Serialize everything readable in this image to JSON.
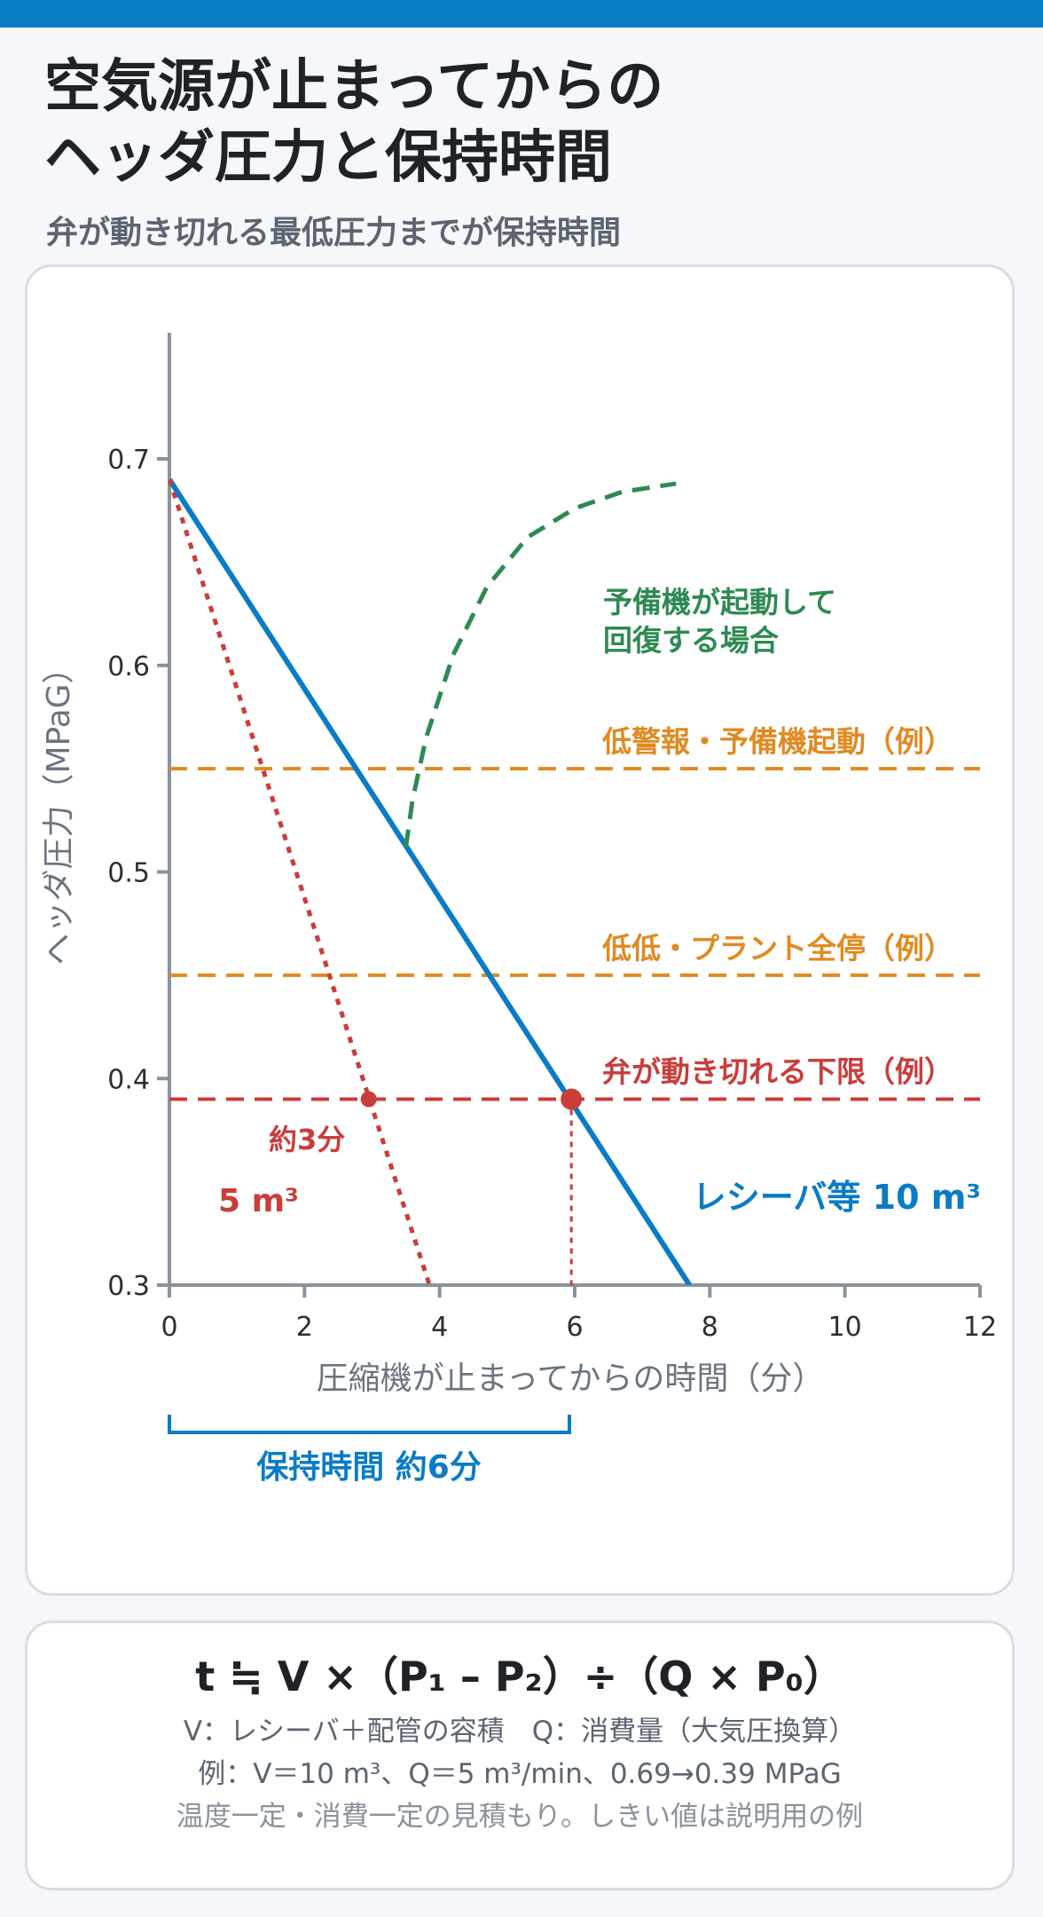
{
  "header": {
    "title_line1": "空気源が止まってからの",
    "title_line2": "ヘッダ圧力と保持時間",
    "subtitle": "弁が動き切れる最低圧力までが保持時間"
  },
  "chart_data": {
    "type": "line",
    "xlabel": "圧縮機が止まってからの時間（分）",
    "ylabel": "ヘッダ圧力（MPaG）",
    "xlim": [
      0,
      12
    ],
    "ylim": [
      0.3,
      0.7
    ],
    "x_ticks": [
      "0",
      "2",
      "4",
      "6",
      "8",
      "10",
      "12"
    ],
    "y_ticks": [
      "0.3",
      "0.4",
      "0.5",
      "0.6",
      "0.7"
    ],
    "series": [
      {
        "name": "レシーバ等 10 m³",
        "color": "#0a7cc6",
        "style": "solid",
        "points": [
          [
            0,
            0.69
          ],
          [
            7.7,
            0.3
          ]
        ]
      },
      {
        "name": "5 m³",
        "color": "#c93d3a",
        "style": "dotted",
        "points": [
          [
            0,
            0.69
          ],
          [
            3.85,
            0.3
          ]
        ]
      },
      {
        "name": "予備機が起動して回復する場合",
        "color": "#2e8a52",
        "style": "dashed",
        "points": [
          [
            3.5,
            0.512
          ],
          [
            3.6,
            0.535
          ],
          [
            3.8,
            0.565
          ],
          [
            4.2,
            0.605
          ],
          [
            4.7,
            0.638
          ],
          [
            5.3,
            0.662
          ],
          [
            6.0,
            0.676
          ],
          [
            6.7,
            0.684
          ],
          [
            7.5,
            0.688
          ]
        ]
      }
    ],
    "thresholds": [
      {
        "label": "低警報・予備機起動（例）",
        "y": 0.55,
        "color": "#e08a22"
      },
      {
        "label": "低低・プラント全停（例）",
        "y": 0.45,
        "color": "#e08a22"
      },
      {
        "label": "弁が動き切れる下限（例）",
        "y": 0.39,
        "color": "#c93d3a"
      }
    ],
    "markers": [
      {
        "x": 2.95,
        "y": 0.39,
        "label": "約3分",
        "color": "#c93d3a"
      },
      {
        "x": 5.95,
        "y": 0.39,
        "label": "",
        "color": "#c93d3a"
      }
    ],
    "hold_time": {
      "from": 0,
      "to": 5.95,
      "label": "保持時間 約6分",
      "color": "#0a7cc6"
    }
  },
  "formula": {
    "main": "t ≒ V ×（P₁ – P₂）÷（Q × P₀）",
    "definitions": "V：レシーバ＋配管の容積　Q：消費量（大気圧換算）",
    "example": "例：V＝10 m³、Q＝5 m³/min、0.69→0.39 MPaG",
    "note": "温度一定・消費一定の見積もり。しきい値は説明用の例"
  }
}
